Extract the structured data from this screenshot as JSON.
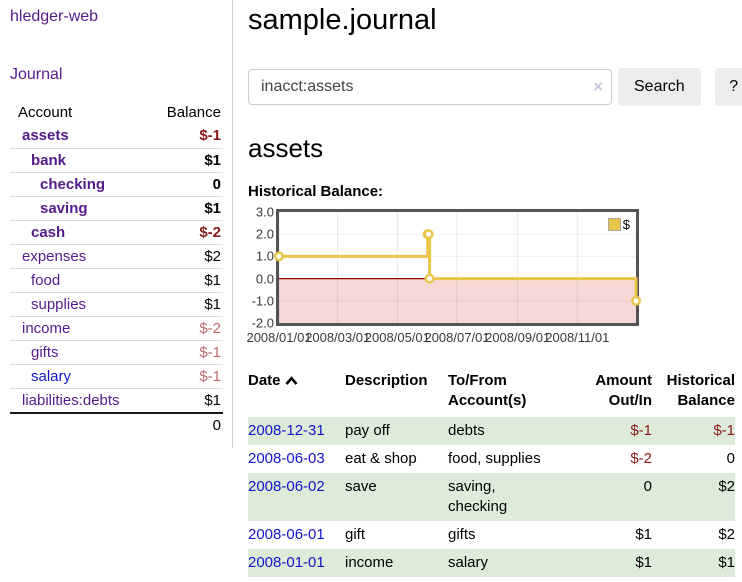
{
  "app": {
    "title": "hledger-web"
  },
  "sidebar": {
    "nav": {
      "journal": "Journal"
    },
    "accounts_table": {
      "headers": {
        "account": "Account",
        "balance": "Balance"
      },
      "rows": [
        {
          "name": "assets",
          "balance": "$-1",
          "depth": 1,
          "in_acct": true,
          "negative": true,
          "link_blue": false
        },
        {
          "name": "bank",
          "balance": "$1",
          "depth": 2,
          "in_acct": true,
          "negative": false,
          "link_blue": false
        },
        {
          "name": "checking",
          "balance": "0",
          "depth": 3,
          "in_acct": true,
          "negative": false,
          "link_blue": false
        },
        {
          "name": "saving",
          "balance": "$1",
          "depth": 3,
          "in_acct": true,
          "negative": false,
          "link_blue": false
        },
        {
          "name": "cash",
          "balance": "$-2",
          "depth": 2,
          "in_acct": true,
          "negative": true,
          "link_blue": false
        },
        {
          "name": "expenses",
          "balance": "$2",
          "depth": 1,
          "in_acct": false,
          "negative": false,
          "link_blue": false
        },
        {
          "name": "food",
          "balance": "$1",
          "depth": 2,
          "in_acct": false,
          "negative": false,
          "link_blue": false
        },
        {
          "name": "supplies",
          "balance": "$1",
          "depth": 2,
          "in_acct": false,
          "negative": false,
          "link_blue": false
        },
        {
          "name": "income",
          "balance": "$-2",
          "depth": 1,
          "in_acct": false,
          "negative": true,
          "link_blue": false
        },
        {
          "name": "gifts",
          "balance": "$-1",
          "depth": 2,
          "in_acct": false,
          "negative": true,
          "link_blue": false
        },
        {
          "name": "salary",
          "balance": "$-1",
          "depth": 2,
          "in_acct": false,
          "negative": true,
          "link_blue": true
        },
        {
          "name": "liabilities:debts",
          "balance": "$1",
          "depth": 1,
          "in_acct": false,
          "negative": false,
          "link_blue": false
        }
      ],
      "total": "0"
    }
  },
  "main": {
    "title": "sample.journal",
    "search": {
      "value": "inacct:assets",
      "clear_icon": "×",
      "button": "Search",
      "help_button": "?"
    },
    "account_heading": "assets",
    "chart_label": "Historical Balance:",
    "register": {
      "headers": {
        "date": "Date",
        "description": "Description",
        "tofrom": [
          "To/From",
          "Account(s)"
        ],
        "amount": [
          "Amount",
          "Out/In"
        ],
        "balance": [
          "Historical",
          "Balance"
        ]
      },
      "rows": [
        {
          "date": "2008-12-31",
          "description": "pay off",
          "accounts": [
            "debts"
          ],
          "amount": "$-1",
          "amount_negative": true,
          "balance": "$-1",
          "balance_negative": true
        },
        {
          "date": "2008-06-03",
          "description": "eat & shop",
          "accounts": [
            "food, supplies"
          ],
          "amount": "$-2",
          "amount_negative": true,
          "balance": "0",
          "balance_negative": false
        },
        {
          "date": "2008-06-02",
          "description": "save",
          "accounts": [
            "saving,",
            "checking"
          ],
          "amount": "0",
          "amount_negative": false,
          "balance": "$2",
          "balance_negative": false
        },
        {
          "date": "2008-06-01",
          "description": "gift",
          "accounts": [
            "gifts"
          ],
          "amount": "$1",
          "amount_negative": false,
          "balance": "$2",
          "balance_negative": false
        },
        {
          "date": "2008-01-01",
          "description": "income",
          "accounts": [
            "salary"
          ],
          "amount": "$1",
          "amount_negative": false,
          "balance": "$1",
          "balance_negative": false
        }
      ]
    }
  },
  "chart_data": {
    "type": "line",
    "step": true,
    "title": "Historical Balance",
    "series": [
      {
        "name": "$",
        "color": "#e9c64a",
        "points": [
          [
            "2008-01-01",
            1
          ],
          [
            "2008-06-01",
            2
          ],
          [
            "2008-06-02",
            2
          ],
          [
            "2008-06-03",
            0
          ],
          [
            "2008-12-31",
            -1
          ]
        ]
      }
    ],
    "xlim": [
      "2008-01-01",
      "2008-12-31"
    ],
    "ylim": [
      -2,
      3
    ],
    "y_ticks": [
      3.0,
      2.0,
      1.0,
      0.0,
      -1.0,
      -2.0
    ],
    "x_ticks": [
      "2008/01/01",
      "2008/03/01",
      "2008/05/01",
      "2008/07/01",
      "2008/09/01",
      "2008/11/01"
    ],
    "legend": {
      "label": "$",
      "position": "top-right"
    },
    "grid": true,
    "negative_region_fill": "#f8d7d7",
    "zero_line_color": "#8b0000"
  },
  "colors": {
    "link_purple": "#551a8b",
    "link_blue": "#1414cc",
    "negative_strong": "#8b1a1a",
    "negative_soft": "#bd6a6e",
    "row_stripe_green": "#ddecd9",
    "chart_line": "#e9c64a"
  }
}
